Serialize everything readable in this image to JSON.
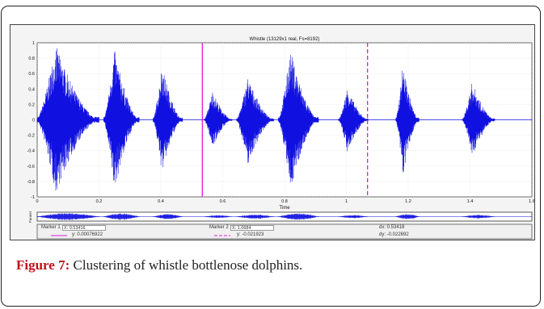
{
  "chart_data": {
    "type": "line",
    "title": "Whistle (13129x1 real, Fs=8192)",
    "xlabel": "Time",
    "ylabel": "",
    "xlim": [
      0,
      1.6
    ],
    "ylim": [
      -1,
      1
    ],
    "x_ticks": [
      "0",
      "0.2",
      "0.4",
      "0.6",
      "0.8",
      "1",
      "1.2",
      "1.4",
      "1.6"
    ],
    "y_ticks": [
      "1",
      "0.8",
      "0.6",
      "0.4",
      "0.2",
      "0",
      "-0.2",
      "-0.4",
      "-0.6",
      "-0.8",
      "-1"
    ],
    "series_color": "#1010e0",
    "bursts": [
      {
        "start": 0.0,
        "end": 0.2,
        "peak_top": 0.97,
        "peak_bottom": -0.96
      },
      {
        "start": 0.215,
        "end": 0.33,
        "peak_top": 0.92,
        "peak_bottom": -0.93
      },
      {
        "start": 0.375,
        "end": 0.47,
        "peak_top": 0.72,
        "peak_bottom": -0.7
      },
      {
        "start": 0.54,
        "end": 0.63,
        "peak_top": 0.38,
        "peak_bottom": -0.36
      },
      {
        "start": 0.645,
        "end": 0.765,
        "peak_top": 0.56,
        "peak_bottom": -0.59
      },
      {
        "start": 0.78,
        "end": 0.91,
        "peak_top": 0.91,
        "peak_bottom": -0.92
      },
      {
        "start": 0.975,
        "end": 1.07,
        "peak_top": 0.42,
        "peak_bottom": -0.43
      },
      {
        "start": 1.16,
        "end": 1.235,
        "peak_top": 0.73,
        "peak_bottom": -0.75
      },
      {
        "start": 1.375,
        "end": 1.48,
        "peak_top": 0.49,
        "peak_bottom": -0.49
      }
    ],
    "markers": [
      {
        "label": "Marker 1",
        "x": 0.53416,
        "color": "#e01bd9",
        "style": "solid",
        "x_text": "X: 0.53416",
        "y_text": "y: 0.00076922"
      },
      {
        "label": "Marker 2",
        "x": 1.0684,
        "color": "#e01bd9",
        "style": "dashed",
        "x_text": "X: 1.0684",
        "y_text": "y: -0.021923"
      }
    ],
    "dx_text": "dx: 0.53418",
    "dy_text": "dy: -0.022692",
    "overview_ylabel": "Panner"
  },
  "caption": {
    "label": "Figure 7:",
    "text": " Clustering of whistle bottlenose dolphins."
  }
}
